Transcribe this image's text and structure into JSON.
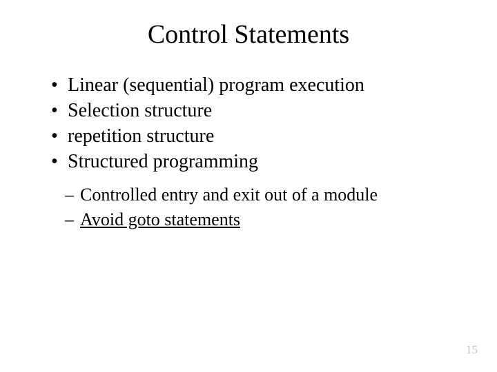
{
  "title": "Control Statements",
  "bullets": [
    "Linear (sequential) program execution",
    "Selection structure",
    "repetition structure",
    "Structured programming"
  ],
  "sub_bullets": [
    {
      "prefix": "Controlled entry and exit out of a module",
      "underlined": ""
    },
    {
      "prefix": "",
      "underlined": "Avoid goto statements"
    }
  ],
  "page_number": "15",
  "colors": {
    "background": "#ffffff",
    "text": "#000000",
    "page_number": "#bfbfbf"
  },
  "fontsize": {
    "title": 38,
    "bullet": 28,
    "sub_bullet": 26,
    "page_number": 17
  }
}
